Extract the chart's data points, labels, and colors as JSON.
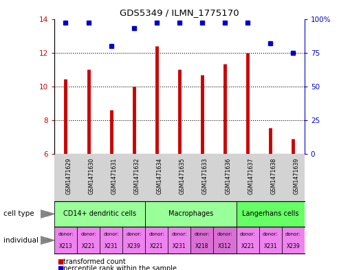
{
  "title": "GDS5349 / ILMN_1775170",
  "samples": [
    "GSM1471629",
    "GSM1471630",
    "GSM1471631",
    "GSM1471632",
    "GSM1471634",
    "GSM1471635",
    "GSM1471633",
    "GSM1471636",
    "GSM1471637",
    "GSM1471638",
    "GSM1471639"
  ],
  "transformed_count": [
    10.45,
    11.0,
    8.6,
    10.0,
    12.4,
    11.0,
    10.7,
    11.35,
    12.0,
    7.55,
    6.9
  ],
  "percentile_rank": [
    97,
    97,
    80,
    93,
    97,
    97,
    97,
    97,
    97,
    82,
    75
  ],
  "ylim_left": [
    6,
    14
  ],
  "ylim_right": [
    0,
    100
  ],
  "yticks_left": [
    6,
    8,
    10,
    12,
    14
  ],
  "yticks_right": [
    0,
    25,
    50,
    75,
    100
  ],
  "bar_color": "#cc0000",
  "dot_color": "#0000cc",
  "bar_baseline": 6,
  "cell_groups": [
    {
      "label": "CD14+ dendritic cells",
      "start": 0,
      "end": 3,
      "color": "#99ff99"
    },
    {
      "label": "Macrophages",
      "start": 4,
      "end": 7,
      "color": "#99ff99"
    },
    {
      "label": "Langerhans cells",
      "start": 8,
      "end": 10,
      "color": "#66ff66"
    }
  ],
  "individual_donors": [
    "X213",
    "X221",
    "X231",
    "X239",
    "X221",
    "X231",
    "X218",
    "X312",
    "X221",
    "X231",
    "X239"
  ],
  "individual_colors": [
    "#ee82ee",
    "#ee82ee",
    "#ee82ee",
    "#ee82ee",
    "#ee82ee",
    "#ee82ee",
    "#da70d6",
    "#da70d6",
    "#ee82ee",
    "#ee82ee",
    "#ee82ee"
  ],
  "sample_bg_color": "#d3d3d3",
  "legend_bar_label": "transformed count",
  "legend_dot_label": "percentile rank within the sample",
  "label_cell_type": "cell type",
  "label_individual": "individual"
}
